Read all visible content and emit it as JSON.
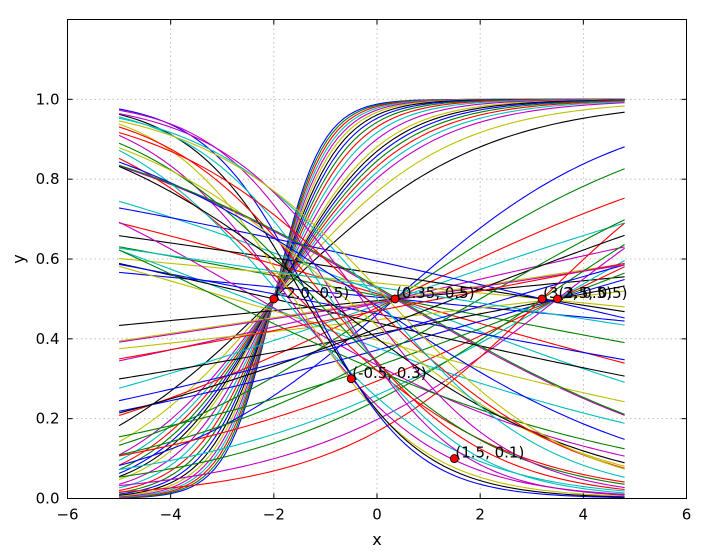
{
  "chart_data": {
    "type": "line",
    "title": "",
    "xlabel": "x",
    "ylabel": "y",
    "xlim": [
      -6,
      6
    ],
    "ylim": [
      0,
      1.2
    ],
    "xticks": [
      "−6",
      "−4",
      "−2",
      "0",
      "2",
      "4",
      "6"
    ],
    "xtick_values": [
      -6,
      -4,
      -2,
      0,
      2,
      4,
      6
    ],
    "yticks": [
      "0.0",
      "0.2",
      "0.4",
      "0.6",
      "0.8",
      "1.0"
    ],
    "ytick_values": [
      0,
      0.2,
      0.4,
      0.6,
      0.8,
      1.0
    ],
    "grid": true,
    "curve_x_range": [
      -5,
      4.8
    ],
    "series_colors": [
      "#0000ff",
      "#008000",
      "#ff0000",
      "#00bfbf",
      "#bf00bf",
      "#bfbf00",
      "#000000"
    ],
    "steep_curves_k": [
      2.2,
      2.1,
      2.0,
      1.9,
      1.8,
      1.7,
      1.6,
      1.5,
      1.4,
      1.3,
      1.2,
      1.1,
      1.0,
      0.95,
      0.9,
      0.85,
      0.8,
      0.75,
      0.7,
      0.6,
      0.5
    ],
    "steep_curves_center": -2,
    "other_curves": [
      {
        "k": 0.45,
        "c": 0.35
      },
      {
        "k": 0.35,
        "c": 0.35
      },
      {
        "k": 0.25,
        "c": 0.35
      },
      {
        "k": 0.18,
        "c": 0.35
      },
      {
        "k": 0.12,
        "c": 0.35
      },
      {
        "k": 0.08,
        "c": 0.35
      },
      {
        "k": 0.05,
        "c": 0.35
      },
      {
        "k": -0.05,
        "c": 0.35
      },
      {
        "k": -0.1,
        "c": 0.35
      },
      {
        "k": -0.15,
        "c": 0.35
      },
      {
        "k": -0.2,
        "c": 0.35
      },
      {
        "k": -0.3,
        "c": 0.35
      },
      {
        "k": 0.06,
        "c": 3.5
      },
      {
        "k": 0.1,
        "c": 3.5
      },
      {
        "k": 0.15,
        "c": 3.5
      },
      {
        "k": 0.2,
        "c": 3.5
      },
      {
        "k": 0.25,
        "c": 3.5
      },
      {
        "k": 0.3,
        "c": 3.5
      },
      {
        "k": 0.4,
        "c": 3.5
      },
      {
        "k": -0.05,
        "c": 3.2
      },
      {
        "k": -0.08,
        "c": 3.2
      },
      {
        "k": -0.12,
        "c": 3.2
      },
      {
        "k": 0.35,
        "c": 3.2
      },
      {
        "k": 0.5,
        "c": 3.2
      },
      {
        "k": -0.2,
        "c": -2.5
      },
      {
        "k": -0.3,
        "c": -2.3
      },
      {
        "k": -0.15,
        "c": -2.8
      },
      {
        "k": -0.12,
        "c": -2.0
      },
      {
        "k": -0.1,
        "c": -1.5
      },
      {
        "k": -0.25,
        "c": -3.0
      },
      {
        "k": -0.5,
        "c": -1.5
      },
      {
        "k": -0.6,
        "c": -1.8
      },
      {
        "k": -0.7,
        "c": -1.7
      },
      {
        "k": -0.8,
        "c": -1.6
      },
      {
        "k": -0.9,
        "c": -1.4
      },
      {
        "k": -1.0,
        "c": -1.3
      },
      {
        "k": -0.55,
        "c": -1.2
      },
      {
        "k": -0.65,
        "c": -1.0
      },
      {
        "k": -0.75,
        "c": -0.9
      },
      {
        "k": -0.85,
        "c": -0.8
      },
      {
        "k": -0.45,
        "c": -0.6
      },
      {
        "k": -0.4,
        "c": -1.0
      },
      {
        "k": -0.35,
        "c": -0.2
      },
      {
        "k": -0.3,
        "c": 0.4
      },
      {
        "k": -0.5,
        "c": -0.2
      },
      {
        "k": -0.6,
        "c": 0.0
      },
      {
        "k": -0.7,
        "c": -0.3
      },
      {
        "k": -0.55,
        "c": 0.2
      },
      {
        "k": 0.2,
        "c": 1.5
      },
      {
        "k": 0.15,
        "c": 2.5
      },
      {
        "k": 0.3,
        "c": 2.0
      },
      {
        "k": 0.1,
        "c": 1.2
      },
      {
        "k": -0.08,
        "c": 1.5
      },
      {
        "k": 0.08,
        "c": 0.5
      }
    ],
    "points": [
      {
        "x": -2.0,
        "y": 0.5,
        "label": "(-2.0, 0.5)"
      },
      {
        "x": 0.35,
        "y": 0.5,
        "label": "(0.35, 0.5)"
      },
      {
        "x": -0.5,
        "y": 0.3,
        "label": "(-0.5, 0.3)"
      },
      {
        "x": 1.5,
        "y": 0.1,
        "label": "(1.5, 0.1)"
      },
      {
        "x": 3.2,
        "y": 0.5,
        "label": "(3.2, 0.5)"
      },
      {
        "x": 3.5,
        "y": 0.5,
        "label": "(3.5, 0.5)"
      }
    ],
    "marker_color": "#ff0000"
  }
}
